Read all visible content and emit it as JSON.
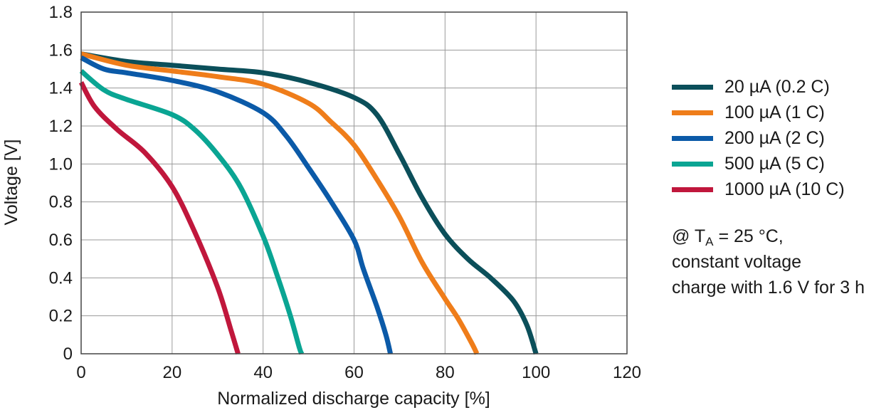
{
  "chart_data": {
    "type": "line",
    "xlabel": "Normalized discharge capacity [%]",
    "ylabel": "Voltage [V]",
    "xlim": [
      0,
      120
    ],
    "ylim": [
      0,
      1.8
    ],
    "xticks": [
      "0",
      "20",
      "40",
      "60",
      "80",
      "100",
      "120"
    ],
    "yticks": [
      "0",
      "0.2",
      "0.4",
      "0.6",
      "0.8",
      "1.0",
      "1.2",
      "1.4",
      "1.6",
      "1.8"
    ],
    "grid": true,
    "legend_position": "right",
    "series": [
      {
        "name": "20 µA (0.2 C)",
        "color": "#0b4f5a",
        "points": [
          [
            0,
            1.58
          ],
          [
            10,
            1.54
          ],
          [
            20,
            1.52
          ],
          [
            30,
            1.5
          ],
          [
            40,
            1.48
          ],
          [
            50,
            1.43
          ],
          [
            60,
            1.35
          ],
          [
            65,
            1.26
          ],
          [
            70,
            1.05
          ],
          [
            75,
            0.82
          ],
          [
            80,
            0.63
          ],
          [
            85,
            0.5
          ],
          [
            90,
            0.4
          ],
          [
            95,
            0.28
          ],
          [
            98,
            0.15
          ],
          [
            100,
            0
          ]
        ]
      },
      {
        "name": "100 µA (1 C)",
        "color": "#ef7d1a",
        "points": [
          [
            0,
            1.58
          ],
          [
            10,
            1.52
          ],
          [
            20,
            1.49
          ],
          [
            30,
            1.46
          ],
          [
            40,
            1.42
          ],
          [
            50,
            1.32
          ],
          [
            55,
            1.22
          ],
          [
            60,
            1.1
          ],
          [
            65,
            0.92
          ],
          [
            70,
            0.72
          ],
          [
            75,
            0.48
          ],
          [
            80,
            0.29
          ],
          [
            83,
            0.18
          ],
          [
            86,
            0.05
          ],
          [
            87,
            0
          ]
        ]
      },
      {
        "name": "200 µA (2 C)",
        "color": "#0b5aa8",
        "points": [
          [
            0,
            1.56
          ],
          [
            5,
            1.5
          ],
          [
            10,
            1.48
          ],
          [
            20,
            1.44
          ],
          [
            30,
            1.38
          ],
          [
            40,
            1.27
          ],
          [
            45,
            1.15
          ],
          [
            50,
            0.98
          ],
          [
            55,
            0.8
          ],
          [
            60,
            0.6
          ],
          [
            62,
            0.45
          ],
          [
            65,
            0.25
          ],
          [
            67,
            0.1
          ],
          [
            68,
            0
          ]
        ]
      },
      {
        "name": "500 µA (5 C)",
        "color": "#0aa593",
        "points": [
          [
            0,
            1.49
          ],
          [
            5,
            1.39
          ],
          [
            10,
            1.34
          ],
          [
            20,
            1.26
          ],
          [
            25,
            1.18
          ],
          [
            30,
            1.05
          ],
          [
            35,
            0.88
          ],
          [
            40,
            0.62
          ],
          [
            43,
            0.42
          ],
          [
            46,
            0.2
          ],
          [
            48,
            0.03
          ],
          [
            48.5,
            0
          ]
        ]
      },
      {
        "name": "1000 µA (10 C)",
        "color": "#c0173c",
        "points": [
          [
            0,
            1.43
          ],
          [
            3,
            1.3
          ],
          [
            8,
            1.18
          ],
          [
            14,
            1.06
          ],
          [
            20,
            0.88
          ],
          [
            25,
            0.64
          ],
          [
            30,
            0.35
          ],
          [
            33,
            0.12
          ],
          [
            34.5,
            0
          ]
        ]
      }
    ],
    "annotation": {
      "prefix": "@ T",
      "subscript": "A",
      "suffix": " = 25 °C,",
      "line2": "constant voltage",
      "line3": "charge with 1.6 V for 3 h"
    }
  }
}
